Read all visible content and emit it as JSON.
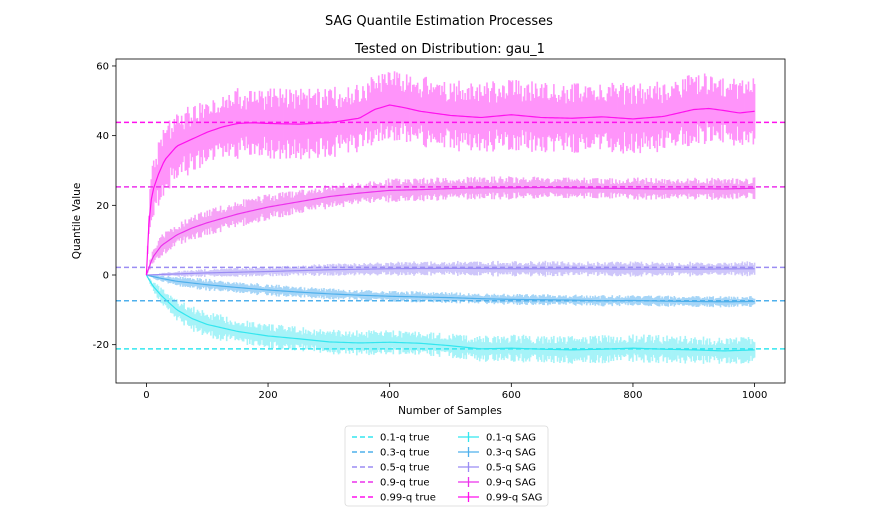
{
  "chart_data": {
    "type": "line",
    "suptitle": "SAG Quantile Estimation Processes",
    "title": "Tested on Distribution: gau_1",
    "xlabel": "Number of Samples",
    "ylabel": "Quantile Value",
    "xlim": [
      -50,
      1050
    ],
    "ylim": [
      -31,
      62
    ],
    "xticks": [
      0,
      200,
      400,
      600,
      800,
      1000
    ],
    "yticks": [
      -20,
      0,
      20,
      40,
      60
    ],
    "grid": false,
    "legend_position": "bottom-center, below plot, 2 columns",
    "true_lines": [
      {
        "name": "0.1-q true",
        "value": -21.2,
        "color": "#33e6ef"
      },
      {
        "name": "0.3-q true",
        "value": -7.4,
        "color": "#4fb0ec"
      },
      {
        "name": "0.5-q true",
        "value": 2.2,
        "color": "#9b8cf3"
      },
      {
        "name": "0.9-q true",
        "value": 25.3,
        "color": "#ec32ec"
      },
      {
        "name": "0.99-q true",
        "value": 43.8,
        "color": "#ff11ee"
      }
    ],
    "series": [
      {
        "name": "0.1-q SAG",
        "color": "#33e6ef",
        "band_color": "#a6f3f8",
        "x": [
          0,
          10,
          25,
          50,
          75,
          100,
          150,
          200,
          250,
          300,
          350,
          400,
          450,
          500,
          550,
          600,
          650,
          700,
          750,
          800,
          850,
          900,
          950,
          1000
        ],
        "y": [
          0,
          -3,
          -6,
          -10,
          -12.5,
          -14.2,
          -16.2,
          -17.5,
          -18.3,
          -19.2,
          -19.5,
          -19.3,
          -19.6,
          -20.3,
          -21.2,
          -21.0,
          -21.3,
          -21.5,
          -21.3,
          -21.0,
          -21.3,
          -21.5,
          -21.8,
          -21.5
        ],
        "err": [
          0,
          1.0,
          1.6,
          2.2,
          2.5,
          2.6,
          2.6,
          2.5,
          2.4,
          2.5,
          2.5,
          2.4,
          2.4,
          2.5,
          2.6,
          2.7,
          2.8,
          2.8,
          2.8,
          2.8,
          2.8,
          2.8,
          2.8,
          2.8
        ]
      },
      {
        "name": "0.3-q SAG",
        "color": "#4fb0ec",
        "band_color": "#a5d5f7",
        "x": [
          0,
          25,
          50,
          100,
          150,
          200,
          250,
          300,
          350,
          400,
          450,
          500,
          550,
          600,
          650,
          700,
          750,
          800,
          850,
          900,
          950,
          1000
        ],
        "y": [
          0,
          -1.0,
          -1.8,
          -2.8,
          -3.6,
          -4.3,
          -4.9,
          -5.4,
          -5.8,
          -6.1,
          -6.3,
          -6.5,
          -6.8,
          -7.0,
          -7.1,
          -7.2,
          -7.4,
          -7.3,
          -7.5,
          -7.6,
          -7.7,
          -7.6
        ],
        "err": [
          0,
          0.8,
          1.0,
          1.2,
          1.2,
          1.2,
          1.1,
          1.1,
          1.1,
          1.1,
          1.1,
          1.1,
          1.1,
          1.1,
          1.1,
          1.1,
          1.1,
          1.1,
          1.1,
          1.1,
          1.1,
          1.1
        ]
      },
      {
        "name": "0.5-q SAG",
        "color": "#9b8cf3",
        "band_color": "#cec6fa",
        "x": [
          0,
          50,
          100,
          200,
          300,
          400,
          500,
          600,
          700,
          800,
          900,
          1000
        ],
        "y": [
          0,
          0.3,
          0.6,
          1.0,
          1.5,
          1.8,
          1.9,
          1.8,
          1.8,
          1.7,
          1.7,
          1.8
        ],
        "err": [
          0,
          0.6,
          0.8,
          1.0,
          1.2,
          1.4,
          1.5,
          1.6,
          1.6,
          1.5,
          1.5,
          1.5
        ]
      },
      {
        "name": "0.9-q SAG",
        "color": "#ec32ec",
        "band_color": "#f6a3f6",
        "x": [
          0,
          10,
          25,
          50,
          75,
          100,
          150,
          200,
          250,
          300,
          350,
          400,
          450,
          500,
          550,
          600,
          650,
          700,
          750,
          800,
          850,
          900,
          950,
          1000
        ],
        "y": [
          0,
          5,
          8.5,
          11.5,
          13.5,
          15,
          17.5,
          19.5,
          21,
          22.5,
          23.5,
          24.3,
          24.5,
          24.8,
          25.0,
          25.0,
          25.1,
          25.0,
          24.9,
          24.8,
          24.7,
          24.8,
          24.7,
          24.9
        ],
        "err": [
          0,
          1.6,
          2.1,
          2.4,
          2.6,
          2.7,
          2.7,
          2.6,
          2.5,
          2.4,
          2.4,
          2.4,
          2.4,
          2.3,
          2.3,
          2.3,
          2.3,
          2.2,
          2.2,
          2.2,
          2.2,
          2.2,
          2.2,
          2.2
        ]
      },
      {
        "name": "0.99-q SAG",
        "color": "#ff11ee",
        "band_color": "#ff94fa",
        "x": [
          0,
          5,
          10,
          20,
          30,
          40,
          50,
          75,
          100,
          125,
          150,
          175,
          200,
          250,
          300,
          350,
          375,
          400,
          425,
          450,
          500,
          550,
          600,
          650,
          700,
          750,
          800,
          850,
          900,
          925,
          950,
          975,
          1000
        ],
        "y": [
          0,
          18,
          24,
          29,
          33,
          35,
          37,
          39,
          41,
          42.5,
          43.5,
          43.7,
          43.5,
          43.3,
          43.7,
          45,
          47.5,
          48.8,
          48,
          47,
          45.8,
          45.2,
          46,
          45.2,
          45.0,
          45.4,
          44.8,
          45.5,
          47.5,
          47.8,
          47.2,
          46.5,
          47.0
        ],
        "err": [
          0,
          4.5,
          5.5,
          6.5,
          6.8,
          7,
          7,
          7,
          7,
          7,
          7,
          7,
          7,
          7,
          7,
          7,
          7,
          7,
          7,
          7,
          7,
          7,
          7,
          7,
          7,
          7,
          7,
          7,
          7,
          7,
          7,
          7,
          7
        ]
      }
    ]
  }
}
